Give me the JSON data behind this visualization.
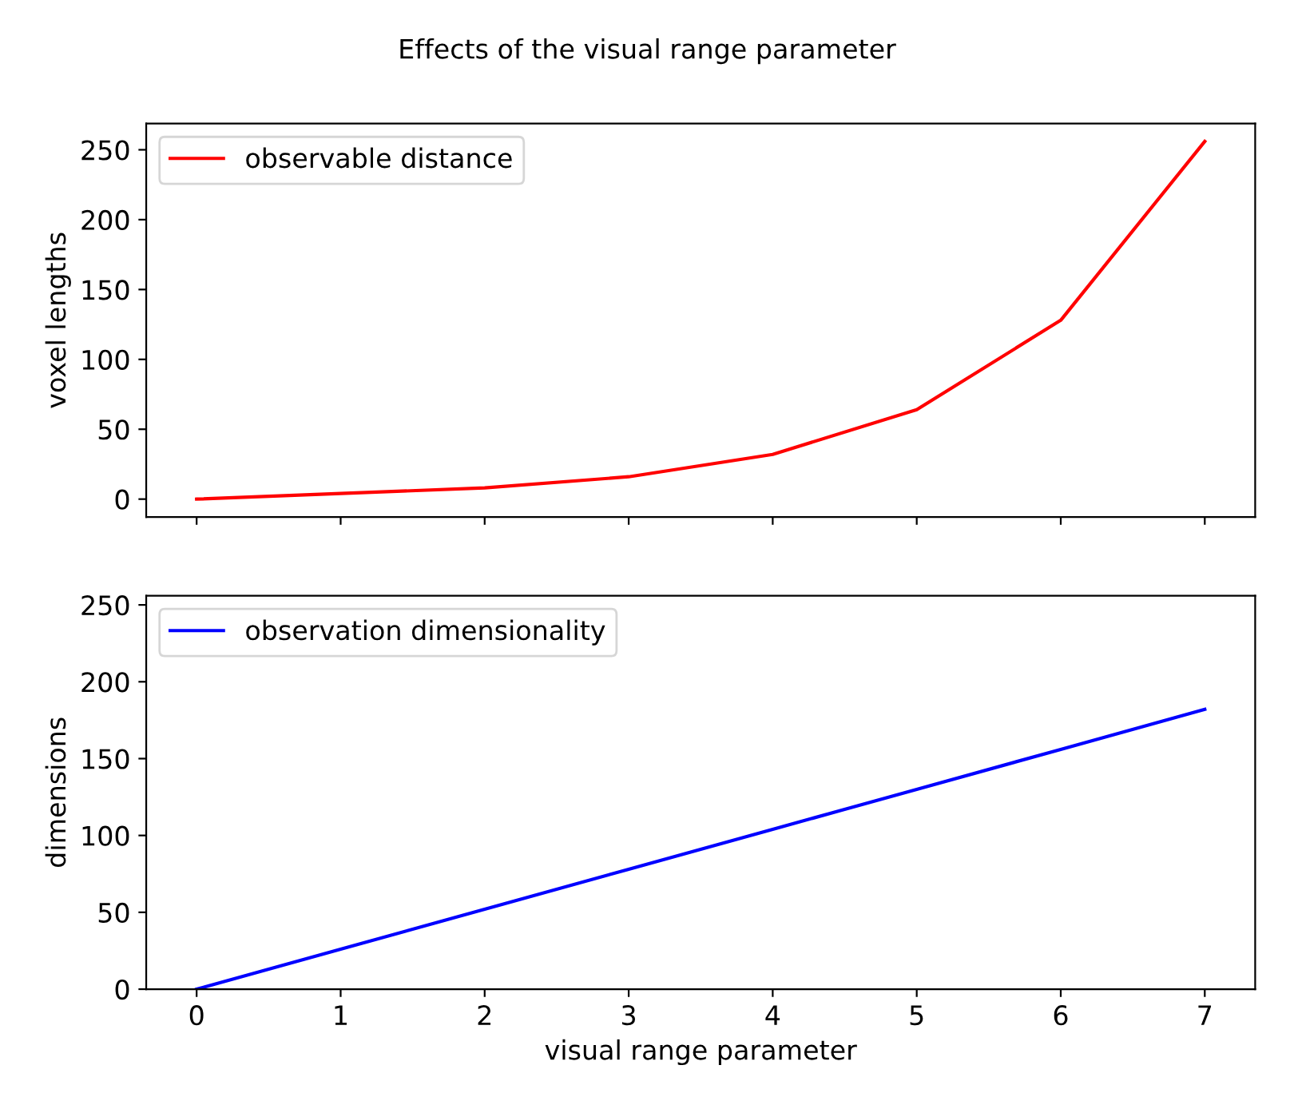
{
  "chart_data": [
    {
      "type": "line",
      "title": "Effects of the visual range parameter",
      "ylabel": "voxel lengths",
      "x": [
        0,
        1,
        2,
        3,
        4,
        5,
        6,
        7
      ],
      "series": [
        {
          "name": "observable distance",
          "color": "#ff0000",
          "values": [
            0,
            4,
            8,
            16,
            32,
            64,
            128,
            256
          ]
        }
      ],
      "xlim": [
        -0.35,
        7.35
      ],
      "xticks": [
        0,
        1,
        2,
        3,
        4,
        5,
        6,
        7
      ],
      "ylim": [
        -12.8,
        268.8
      ],
      "yticks": [
        0,
        50,
        100,
        150,
        200,
        250
      ],
      "tick_labels": "y",
      "legend": "top left",
      "grid": false
    },
    {
      "type": "line",
      "xlabel": "visual range parameter",
      "ylabel": "dimensions",
      "x": [
        0,
        1,
        2,
        3,
        4,
        5,
        6,
        7
      ],
      "series": [
        {
          "name": "observation dimensionality",
          "color": "#0000ff",
          "values": [
            0,
            26,
            52,
            78,
            104,
            130,
            156,
            182
          ]
        }
      ],
      "xlim": [
        -0.35,
        7.35
      ],
      "xticks": [
        0,
        1,
        2,
        3,
        4,
        5,
        6,
        7
      ],
      "ylim": [
        0,
        256
      ],
      "yticks": [
        0,
        50,
        100,
        150,
        200,
        250
      ],
      "legend": "top left",
      "grid": false
    }
  ]
}
